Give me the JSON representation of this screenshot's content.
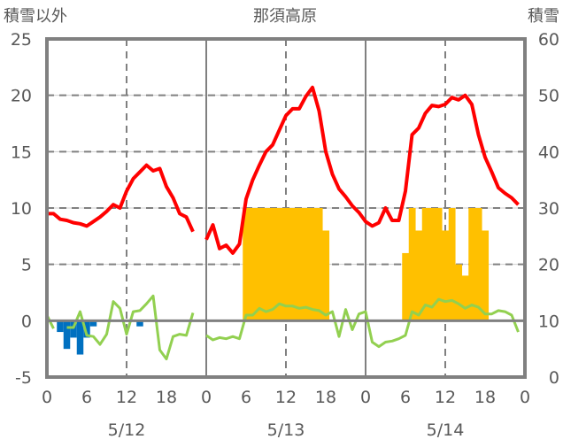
{
  "chart_data": {
    "type": "bar+line",
    "title": "那須高原",
    "left_axis_label": "積雪以外",
    "right_axis_label": "積雪",
    "left_ylim": [
      -5,
      25
    ],
    "left_ticks": [
      "25",
      "20",
      "15",
      "10",
      "5",
      "0",
      "-5"
    ],
    "right_ylim": [
      0,
      60
    ],
    "right_ticks": [
      "60",
      "50",
      "40",
      "30",
      "20",
      "10",
      "0"
    ],
    "x_hour_ticks": [
      "0",
      "6",
      "12",
      "18",
      "0",
      "6",
      "12",
      "18",
      "0",
      "6",
      "12",
      "18",
      "0"
    ],
    "days": [
      "5/12",
      "5/13",
      "5/14"
    ],
    "grid": true,
    "colors": {
      "temperature_high": "#ff0000",
      "temperature_low": "#92d050",
      "snowfall": "#0070c0",
      "snow_depth": "#ffc000",
      "axis": "#808080"
    },
    "series": [
      {
        "name": "red-line",
        "axis": "left",
        "values": [
          9.5,
          9.5,
          9.0,
          8.9,
          8.7,
          8.6,
          8.4,
          8.8,
          9.2,
          9.7,
          10.3,
          10.0,
          11.5,
          12.6,
          13.2,
          13.8,
          13.3,
          13.5,
          11.9,
          10.9,
          9.5,
          9.2,
          7.9,
          null,
          7.2,
          8.5,
          6.4,
          6.7,
          6.0,
          6.8,
          10.8,
          12.5,
          13.8,
          15.0,
          15.6,
          16.9,
          18.2,
          18.8,
          18.8,
          19.9,
          20.7,
          18.6,
          15.0,
          13.0,
          11.7,
          11.0,
          10.2,
          9.6,
          8.8,
          8.4,
          8.7,
          10.0,
          8.9,
          8.9,
          11.5,
          16.5,
          17.1,
          18.4,
          19.1,
          19.0,
          19.2,
          19.8,
          19.6,
          20.0,
          19.2,
          16.5,
          14.5,
          13.2,
          11.8,
          11.3,
          10.9,
          10.3
        ]
      },
      {
        "name": "green-line",
        "axis": "left",
        "values": [
          0.5,
          -0.7,
          null,
          -0.6,
          -0.6,
          0.8,
          -1.3,
          -1.4,
          -2.1,
          -1.2,
          1.7,
          1.1,
          -1.2,
          0.8,
          0.9,
          1.5,
          2.2,
          -2.6,
          -3.4,
          -1.4,
          -1.2,
          -1.3,
          0.7,
          null,
          -1.3,
          -1.7,
          -1.5,
          -1.6,
          -1.4,
          -1.6,
          0.5,
          0.5,
          1.1,
          0.8,
          1.0,
          1.5,
          1.3,
          1.3,
          1.1,
          1.2,
          1.0,
          0.9,
          0.5,
          0.8,
          -1.4,
          1.0,
          -0.8,
          0.6,
          0.8,
          -1.9,
          -2.3,
          -1.9,
          -1.8,
          -1.6,
          -1.3,
          0.8,
          0.5,
          1.4,
          1.2,
          1.9,
          1.7,
          1.8,
          1.5,
          1.1,
          1.4,
          1.2,
          0.6,
          0.6,
          0.9,
          0.8,
          0.5,
          -1.0
        ]
      },
      {
        "name": "blue-bars",
        "axis": "left",
        "points": [
          [
            2,
            -1
          ],
          [
            3,
            -2.5
          ],
          [
            4,
            -1.5
          ],
          [
            5,
            -3
          ],
          [
            6,
            -1.5
          ],
          [
            7,
            -0.5
          ],
          [
            14,
            -0.5
          ]
        ]
      },
      {
        "name": "snow-depth-bars",
        "axis": "right",
        "points": [
          [
            30,
            30
          ],
          [
            31,
            30
          ],
          [
            32,
            30
          ],
          [
            33,
            30
          ],
          [
            34,
            30
          ],
          [
            35,
            30
          ],
          [
            36,
            30
          ],
          [
            37,
            30
          ],
          [
            38,
            30
          ],
          [
            39,
            30
          ],
          [
            40,
            30
          ],
          [
            41,
            30
          ],
          [
            42,
            26
          ],
          [
            54,
            22
          ],
          [
            55,
            30
          ],
          [
            56,
            26
          ],
          [
            57,
            30
          ],
          [
            58,
            30
          ],
          [
            59,
            30
          ],
          [
            60,
            26
          ],
          [
            61,
            30
          ],
          [
            62,
            20
          ],
          [
            63,
            18
          ],
          [
            64,
            30
          ],
          [
            65,
            30
          ],
          [
            66,
            26
          ]
        ]
      }
    ]
  }
}
